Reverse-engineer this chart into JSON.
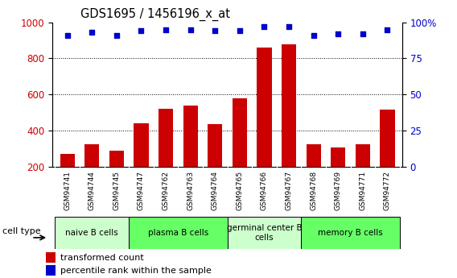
{
  "title": "GDS1695 / 1456196_x_at",
  "samples": [
    "GSM94741",
    "GSM94744",
    "GSM94745",
    "GSM94747",
    "GSM94762",
    "GSM94763",
    "GSM94764",
    "GSM94765",
    "GSM94766",
    "GSM94767",
    "GSM94768",
    "GSM94769",
    "GSM94771",
    "GSM94772"
  ],
  "transformed_count": [
    270,
    325,
    290,
    440,
    520,
    540,
    435,
    580,
    860,
    880,
    325,
    305,
    325,
    515
  ],
  "percentile_rank": [
    91,
    93,
    91,
    94,
    95,
    95,
    94,
    94,
    97,
    97,
    91,
    92,
    92,
    95
  ],
  "cell_groups": [
    {
      "label": "naive B cells",
      "start": 0,
      "end": 3,
      "color": "#ccffcc"
    },
    {
      "label": "plasma B cells",
      "start": 3,
      "end": 7,
      "color": "#66ff66"
    },
    {
      "label": "germinal center B\ncells",
      "start": 7,
      "end": 10,
      "color": "#ccffcc"
    },
    {
      "label": "memory B cells",
      "start": 10,
      "end": 14,
      "color": "#66ff66"
    }
  ],
  "bar_color": "#cc0000",
  "dot_color": "#0000cc",
  "ylim_left": [
    200,
    1000
  ],
  "ylim_right": [
    0,
    100
  ],
  "yticks_left": [
    200,
    400,
    600,
    800,
    1000
  ],
  "yticks_right": [
    0,
    25,
    50,
    75,
    100
  ],
  "grid_ticks": [
    400,
    600,
    800
  ],
  "tick_label_color_left": "#cc0000",
  "tick_label_color_right": "#0000cc",
  "legend_labels": [
    "transformed count",
    "percentile rank within the sample"
  ],
  "xtick_bg_color": "#d3d3d3",
  "cell_type_label": "cell type"
}
